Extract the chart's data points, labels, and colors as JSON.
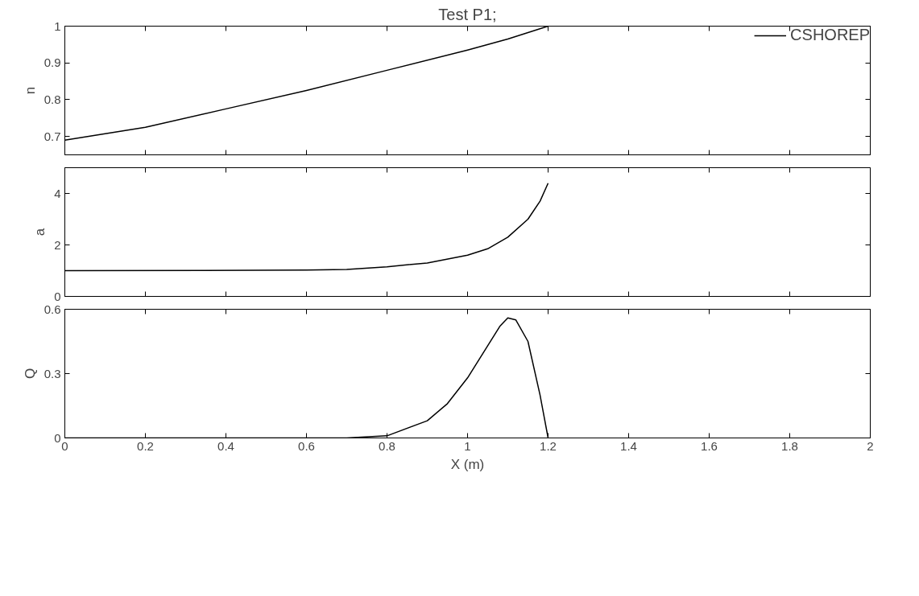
{
  "chart_data": [
    {
      "type": "line",
      "title": "Test P1;",
      "ylabel": "n",
      "legend": "top right",
      "tick_labels": "y",
      "grid": false,
      "xlim": [
        0,
        2
      ],
      "xticks": [
        0,
        0.2,
        0.4,
        0.6,
        0.8,
        1,
        1.2,
        1.4,
        1.6,
        1.8,
        2
      ],
      "ylim": [
        0.65,
        1
      ],
      "yticks": [
        0.7,
        0.8,
        0.9,
        1
      ],
      "x": [
        0,
        0.2,
        0.4,
        0.6,
        0.8,
        1.0,
        1.1,
        1.2
      ],
      "series": [
        {
          "name": "CSHOREP",
          "color": "#000000",
          "values": [
            0.69,
            0.725,
            0.775,
            0.825,
            0.88,
            0.935,
            0.965,
            1.0
          ]
        }
      ]
    },
    {
      "type": "line",
      "ylabel": "a",
      "tick_labels": "y",
      "grid": false,
      "xlim": [
        0,
        2
      ],
      "xticks": [
        0,
        0.2,
        0.4,
        0.6,
        0.8,
        1,
        1.2,
        1.4,
        1.6,
        1.8,
        2
      ],
      "ylim": [
        0,
        5
      ],
      "yticks": [
        0,
        2,
        4
      ],
      "x": [
        0,
        0.6,
        0.7,
        0.8,
        0.9,
        1.0,
        1.05,
        1.1,
        1.15,
        1.18,
        1.2
      ],
      "series": [
        {
          "color": "#000000",
          "values": [
            1,
            1.02,
            1.05,
            1.15,
            1.3,
            1.6,
            1.85,
            2.3,
            3.0,
            3.7,
            4.4
          ]
        }
      ]
    },
    {
      "type": "line",
      "ylabel": "Q",
      "xlabel": "X (m)",
      "grid": false,
      "xlim": [
        0,
        2
      ],
      "xticks": [
        0,
        0.2,
        0.4,
        0.6,
        0.8,
        1,
        1.2,
        1.4,
        1.6,
        1.8,
        2
      ],
      "ylim": [
        0,
        0.6
      ],
      "yticks": [
        0,
        0.3,
        0.6
      ],
      "x": [
        0,
        0.7,
        0.8,
        0.9,
        0.95,
        1.0,
        1.05,
        1.08,
        1.1,
        1.12,
        1.15,
        1.18,
        1.2
      ],
      "series": [
        {
          "color": "#000000",
          "values": [
            0,
            0,
            0.01,
            0.08,
            0.16,
            0.28,
            0.43,
            0.52,
            0.56,
            0.55,
            0.45,
            0.2,
            0
          ]
        }
      ]
    }
  ]
}
